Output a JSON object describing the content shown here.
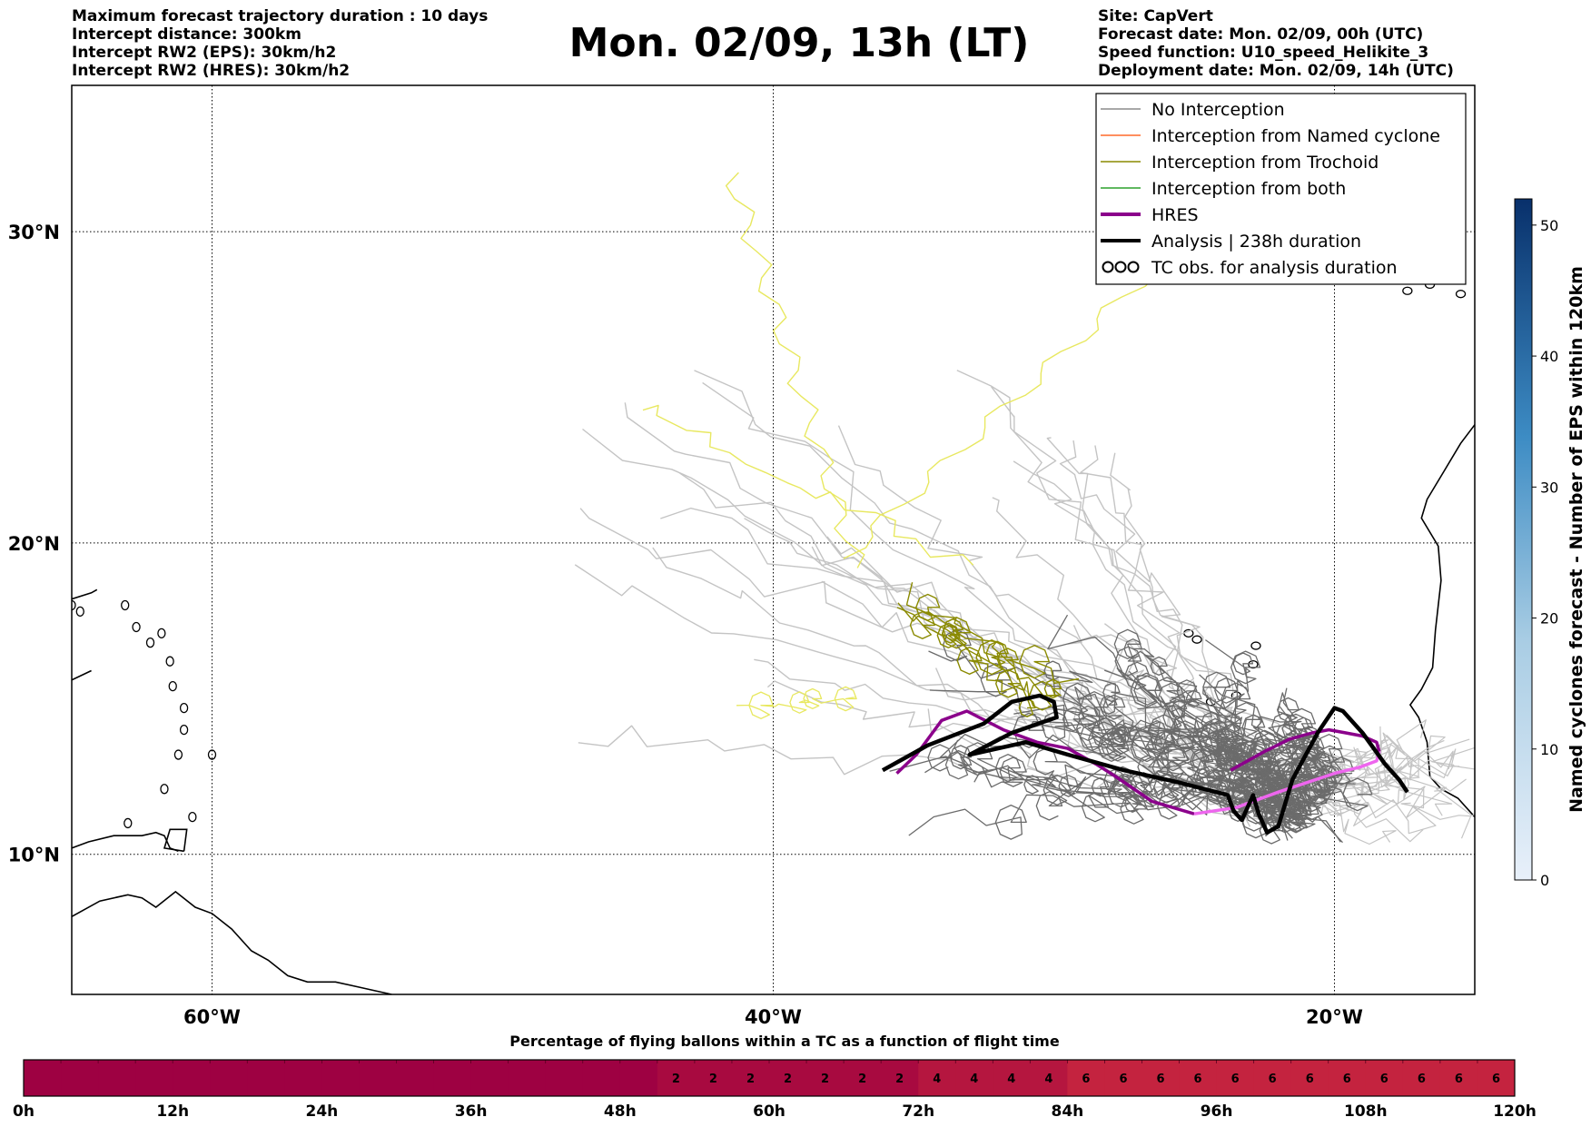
{
  "header": {
    "left_lines": [
      "Maximum forecast trajectory duration : 10 days",
      "Intercept distance: 300km",
      "Intercept RW2 (EPS):  30km/h2",
      "Intercept RW2 (HRES): 30km/h2"
    ],
    "title": "Mon. 02/09, 13h (LT)",
    "right_lines": [
      "Site: CapVert",
      "Forecast date: Mon. 02/09, 00h (UTC)",
      "Speed function: U10_speed_Helikite_3",
      "Deployment date: Mon. 02/09, 14h (UTC)"
    ]
  },
  "legend": {
    "entries": [
      {
        "label": "No Interception",
        "color": "#8c8c8c",
        "kind": "line"
      },
      {
        "label": "Interception from Named cyclone",
        "color": "#ff6a2a",
        "kind": "line"
      },
      {
        "label": "Interception from Trochoid",
        "color": "#8a8a00",
        "kind": "line"
      },
      {
        "label": "Interception from both",
        "color": "#2ca02c",
        "kind": "line"
      },
      {
        "label": "HRES",
        "color": "#8b008b",
        "kind": "thick"
      },
      {
        "label": "Analysis | 238h duration",
        "color": "#000000",
        "kind": "thick"
      },
      {
        "label": "TC obs. for analysis duration",
        "color": "#000000",
        "kind": "loops"
      }
    ]
  },
  "colorbar": {
    "label": "Named cyclones forecast - Number of EPS within 120km",
    "ticks": [
      "0",
      "10",
      "20",
      "30",
      "40",
      "50"
    ],
    "min": 0,
    "max": 52,
    "color_low": "#e8f0fa",
    "color_high": "#08306b"
  },
  "bottom_bar": {
    "title": "Percentage of flying ballons within a TC as a function of flight time",
    "time_ticks": [
      "0h",
      "12h",
      "24h",
      "36h",
      "48h",
      "60h",
      "72h",
      "84h",
      "96h",
      "108h",
      "120h"
    ],
    "cells_per_hour": 0.3333,
    "cell_values": [
      0,
      0,
      0,
      0,
      0,
      0,
      0,
      0,
      0,
      0,
      0,
      0,
      0,
      0,
      0,
      0,
      0,
      2,
      2,
      2,
      2,
      2,
      2,
      2,
      4,
      4,
      4,
      4,
      6,
      6,
      6,
      6,
      6,
      6,
      6,
      6,
      6,
      6,
      6,
      6
    ],
    "colors": {
      "0": "#9e0142",
      "2": "#a80a40",
      "4": "#b5163f",
      "6": "#c4233f"
    }
  },
  "chart_data": {
    "type": "map",
    "x_ticks": [
      "60°W",
      "40°W",
      "20°W"
    ],
    "y_ticks": [
      "30°N",
      "20°N",
      "10°N"
    ],
    "xlim": [
      -65,
      -15
    ],
    "ylim": [
      5.5,
      34.7
    ],
    "grid": true,
    "legend_position": "top-right",
    "colors": {
      "eps_light": "#c4c4c4",
      "eps_dark": "#6b6b6b",
      "trochoid": "#8a8a00",
      "yellow": "#e8e860",
      "hres": "#8b008b",
      "hres_pink": "#ee66ee",
      "analysis": "#000000",
      "coast": "#000000"
    },
    "hres_track": [
      [
        -35.6,
        12.6
      ],
      [
        -34.9,
        13.2
      ],
      [
        -34.0,
        14.3
      ],
      [
        -33.1,
        14.6
      ],
      [
        -31.8,
        14.0
      ],
      [
        -30.6,
        13.6
      ],
      [
        -29.5,
        13.4
      ],
      [
        -28.5,
        12.9
      ],
      [
        -27.8,
        12.5
      ],
      [
        -26.5,
        11.7
      ],
      [
        -25.0,
        11.3
      ],
      [
        -23.5,
        11.5
      ],
      [
        -22.0,
        12.0
      ],
      [
        -20.0,
        12.6
      ],
      [
        -19.1,
        12.8
      ],
      [
        -18.5,
        13.0
      ],
      [
        -18.4,
        13.3
      ],
      [
        -18.5,
        13.6
      ],
      [
        -19.0,
        13.8
      ],
      [
        -19.6,
        13.9
      ],
      [
        -20.2,
        14.0
      ],
      [
        -20.8,
        13.9
      ],
      [
        -21.6,
        13.7
      ],
      [
        -22.5,
        13.3
      ],
      [
        -23.7,
        12.7
      ]
    ],
    "analysis_track": [
      [
        -36.1,
        12.7
      ],
      [
        -34.5,
        13.5
      ],
      [
        -32.5,
        14.2
      ],
      [
        -31.5,
        14.9
      ],
      [
        -30.5,
        15.1
      ],
      [
        -30.0,
        14.9
      ],
      [
        -29.9,
        14.4
      ],
      [
        -31.5,
        13.9
      ],
      [
        -33.0,
        13.2
      ],
      [
        -31.0,
        13.6
      ],
      [
        -29.5,
        13.2
      ],
      [
        -27.5,
        12.7
      ],
      [
        -25.5,
        12.3
      ],
      [
        -23.8,
        11.9
      ],
      [
        -23.6,
        11.4
      ],
      [
        -23.3,
        11.1
      ],
      [
        -22.9,
        11.9
      ],
      [
        -22.7,
        11.3
      ],
      [
        -22.4,
        10.7
      ],
      [
        -22.0,
        10.9
      ],
      [
        -21.5,
        12.4
      ],
      [
        -20.6,
        13.9
      ],
      [
        -20.0,
        14.7
      ],
      [
        -19.7,
        14.6
      ],
      [
        -19.0,
        13.9
      ],
      [
        -18.2,
        12.9
      ],
      [
        -17.7,
        12.4
      ],
      [
        -17.4,
        12.0
      ]
    ]
  }
}
